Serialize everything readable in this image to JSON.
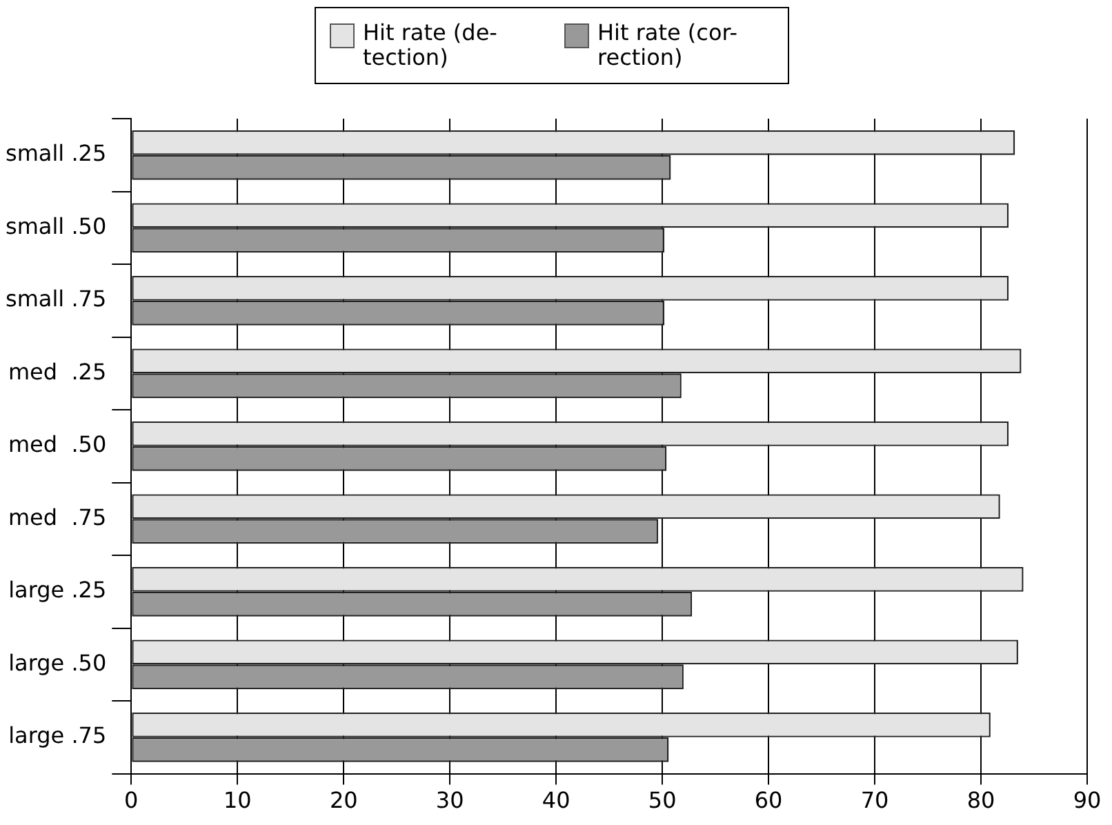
{
  "chart_data": {
    "type": "bar",
    "orientation": "horizontal",
    "categories": [
      "small .25",
      "small .50",
      "small .75",
      "med  .25",
      "med  .50",
      "med  .75",
      "large .25",
      "large .50",
      "large .75"
    ],
    "series": [
      {
        "name": "Hit rate (de-\ntection)",
        "color": "#e4e4e4",
        "values": [
          83.2,
          82.6,
          82.6,
          83.8,
          82.6,
          81.8,
          84.0,
          83.5,
          80.9
        ]
      },
      {
        "name": "Hit rate (cor-\nrection)",
        "color": "#999999",
        "values": [
          50.8,
          50.2,
          50.2,
          51.8,
          50.4,
          49.6,
          52.8,
          52.0,
          50.6
        ]
      }
    ],
    "xlim": [
      0,
      90
    ],
    "xticks": [
      0,
      10,
      20,
      30,
      40,
      50,
      60,
      70,
      80,
      90
    ],
    "grid": "x",
    "legend": "top"
  }
}
